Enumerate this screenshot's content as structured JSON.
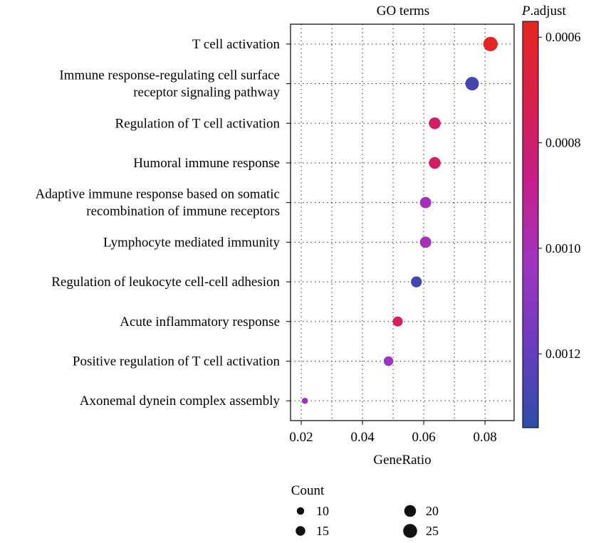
{
  "chart_data": {
    "type": "scatter",
    "title": "GO terms",
    "xlabel": "GeneRatio",
    "xlim": [
      0.0165,
      0.0895
    ],
    "xticks": [
      0.02,
      0.04,
      0.06,
      0.08
    ],
    "xtick_labels": [
      "0.02",
      "0.04",
      "0.06",
      "0.08"
    ],
    "grid": "dotted",
    "terms": [
      {
        "label": [
          "T cell activation"
        ],
        "gene_ratio": 0.0818,
        "count": 26,
        "p_adjust": 0.00059
      },
      {
        "label": [
          "Immune response-regulating cell surface",
          "receptor signaling pathway"
        ],
        "gene_ratio": 0.0758,
        "count": 24,
        "p_adjust": 0.00128
      },
      {
        "label": [
          "Regulation of T cell activation"
        ],
        "gene_ratio": 0.0636,
        "count": 20,
        "p_adjust": 0.00078
      },
      {
        "label": [
          "Humoral immune response"
        ],
        "gene_ratio": 0.0636,
        "count": 20,
        "p_adjust": 0.00078
      },
      {
        "label": [
          "Adaptive immune response based on somatic",
          "recombination of immune receptors"
        ],
        "gene_ratio": 0.0606,
        "count": 19,
        "p_adjust": 0.00101
      },
      {
        "label": [
          "Lymphocyte mediated immunity"
        ],
        "gene_ratio": 0.0606,
        "count": 19,
        "p_adjust": 0.00101
      },
      {
        "label": [
          "Regulation of leukocyte cell-cell adhesion"
        ],
        "gene_ratio": 0.0576,
        "count": 18,
        "p_adjust": 0.00128
      },
      {
        "label": [
          "Acute inflammatory response"
        ],
        "gene_ratio": 0.0515,
        "count": 16,
        "p_adjust": 0.00076
      },
      {
        "label": [
          "Positive regulation of T cell activation"
        ],
        "gene_ratio": 0.0485,
        "count": 15,
        "p_adjust": 0.00104
      },
      {
        "label": [
          "Axonemal dynein complex assembly"
        ],
        "gene_ratio": 0.0212,
        "count": 7,
        "p_adjust": 0.00102
      }
    ],
    "colorbar": {
      "title_italic": "P",
      "title_rest": ".adjust",
      "range": [
        0.00057,
        0.00134
      ],
      "ticks": [
        0.0006,
        0.0008,
        0.001,
        0.0012
      ],
      "tick_labels": [
        "0.0006",
        "0.0008",
        "0.0010",
        "0.0012"
      ],
      "colors": [
        "#e4281e",
        "#d8204f",
        "#c51f8d",
        "#9f35bf",
        "#6a3cbf",
        "#2c4ea8"
      ]
    },
    "size_legend": {
      "title": "Count",
      "entries": [
        {
          "label": "10",
          "count": 10
        },
        {
          "label": "15",
          "count": 15
        },
        {
          "label": "20",
          "count": 20
        },
        {
          "label": "25",
          "count": 25
        }
      ]
    }
  }
}
